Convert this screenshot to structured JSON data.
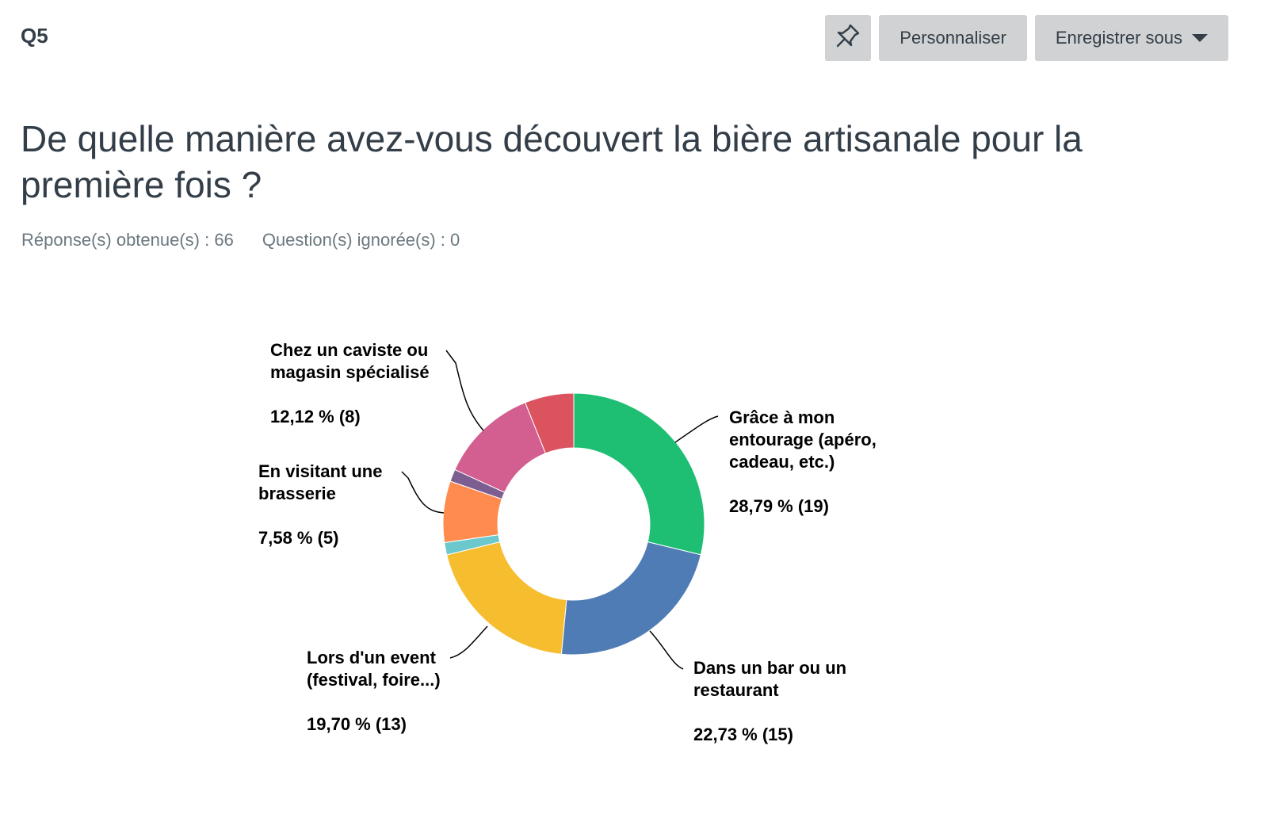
{
  "header": {
    "question_number": "Q5",
    "customize_label": "Personnaliser",
    "save_as_label": "Enregistrer sous"
  },
  "question": {
    "title": "De quelle manière avez-vous découvert la bière artisanale pour la première fois ?",
    "answered": "Réponse(s) obtenue(s) : 66",
    "skipped": "Question(s) ignorée(s) : 0"
  },
  "icons": {
    "pin": "pin-icon",
    "dropdown": "chevron-down-icon"
  },
  "chart_data": {
    "type": "pie",
    "donut": true,
    "slices": [
      {
        "label": "Grâce à mon entourage (apéro, cadeau, etc.)",
        "value": 28.79,
        "count": 19,
        "pct_text": "28,79 % (19)",
        "color": "#1fbf73"
      },
      {
        "label": "Dans un bar ou un restaurant",
        "value": 22.73,
        "count": 15,
        "pct_text": "22,73 % (15)",
        "color": "#507cb6"
      },
      {
        "label": "Lors d'un event (festival, foire...)",
        "value": 19.7,
        "count": 13,
        "pct_text": "19,70 % (13)",
        "color": "#f6bd2f"
      },
      {
        "label": "",
        "value": 1.52,
        "count": 1,
        "pct_text": "",
        "color": "#6bc8cd"
      },
      {
        "label": "En visitant une brasserie",
        "value": 7.58,
        "count": 5,
        "pct_text": "7,58 % (5)",
        "color": "#ff8b4f"
      },
      {
        "label": "",
        "value": 1.52,
        "count": 1,
        "pct_text": "",
        "color": "#7d5e90"
      },
      {
        "label": "Chez un caviste ou magasin spécialisé",
        "value": 12.12,
        "count": 8,
        "pct_text": "12,12 % (8)",
        "color": "#d25f90"
      },
      {
        "label": "",
        "value": 6.06,
        "count": 4,
        "pct_text": "",
        "color": "#dc5360"
      }
    ]
  }
}
